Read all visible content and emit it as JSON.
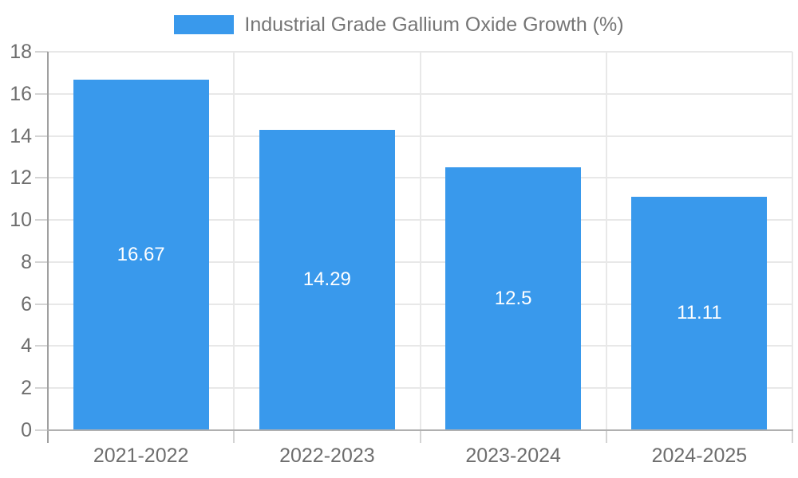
{
  "legend": {
    "label": "Industrial Grade Gallium Oxide Growth (%)"
  },
  "colors": {
    "bar": "#3999ec",
    "grid": "#e8e8e8",
    "axis_x": "#b0b0b0",
    "axis_y": "#a0a0a0",
    "tick": "#d4d4d4",
    "axis_label_text": "#6e6e6e",
    "legend_text": "#757575",
    "bar_label_text": "#ffffff",
    "background": "#ffffff"
  },
  "chart_data": {
    "type": "bar",
    "title": "Industrial Grade Gallium Oxide Growth (%)",
    "categories": [
      "2021-2022",
      "2022-2023",
      "2023-2024",
      "2024-2025"
    ],
    "series": [
      {
        "name": "Industrial Grade Gallium Oxide Growth (%)",
        "values": [
          16.67,
          14.29,
          12.5,
          11.11
        ],
        "color": "#3999ec"
      }
    ],
    "bar_labels": [
      "16.67",
      "14.29",
      "12.5",
      "11.11"
    ],
    "bar_label_position": "inside-center",
    "xlabel": "",
    "ylabel": "",
    "ylim": [
      0,
      18
    ],
    "yticks": [
      0,
      2,
      4,
      6,
      8,
      10,
      12,
      14,
      16,
      18
    ],
    "grid": true,
    "legend_position": "top-center"
  }
}
